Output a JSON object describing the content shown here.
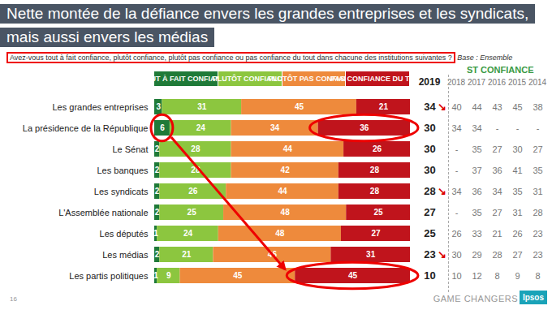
{
  "chart_data": {
    "type": "bar",
    "title": "Nette montée de la défiance envers les grandes entreprises et les syndicats, mais aussi envers les médias",
    "subtitle": "Avez-vous tout à fait confiance, plutôt confiance, plutôt pas confiance ou pas confiance du tout dans chacune des institutions suivantes ?",
    "base": "Base : Ensemble",
    "orientation": "horizontal",
    "stacked": true,
    "data_labels": true,
    "tick_labels": "y",
    "xlim": [
      0,
      100
    ],
    "categories": [
      "Les grandes entreprises",
      "La présidence de la République",
      "Le Sénat",
      "Les banques",
      "Les syndicats",
      "L'Assemblée nationale",
      "Les députés",
      "Les médias",
      "Les partis politiques"
    ],
    "series": [
      {
        "name": "TOUT À FAIT CONFIANCE",
        "color": "#1f7a38",
        "values": [
          3,
          6,
          2,
          2,
          2,
          2,
          1,
          2,
          1
        ]
      },
      {
        "name": "PLUTÔT CONFIANCE",
        "color": "#8cc63f",
        "values": [
          31,
          24,
          28,
          28,
          26,
          25,
          24,
          21,
          9
        ]
      },
      {
        "name": "PLUTÔT PAS CONFIANCE",
        "color": "#ee8a3c",
        "values": [
          45,
          34,
          44,
          42,
          44,
          48,
          48,
          46,
          45
        ]
      },
      {
        "name": "PAS CONFIANCE DU TOUT",
        "color": "#c0141c",
        "values": [
          21,
          36,
          26,
          28,
          28,
          25,
          27,
          31,
          45
        ]
      }
    ],
    "table": {
      "title": "ST CONFIANCE",
      "columns": [
        2019,
        2018,
        2017,
        2016,
        2015,
        2014
      ],
      "rows": [
        [
          34,
          40,
          44,
          43,
          45,
          38
        ],
        [
          30,
          34,
          34,
          "-",
          "-",
          "-"
        ],
        [
          30,
          "-",
          35,
          27,
          30,
          27
        ],
        [
          30,
          "-",
          37,
          36,
          41,
          35
        ],
        [
          28,
          34,
          36,
          34,
          35,
          31
        ],
        [
          27,
          "-",
          35,
          27,
          31,
          28
        ],
        [
          25,
          26,
          33,
          21,
          26,
          23
        ],
        [
          23,
          30,
          29,
          28,
          27,
          23
        ],
        [
          10,
          10,
          12,
          8,
          9,
          8
        ]
      ],
      "trend": [
        "↘",
        null,
        null,
        null,
        "↘",
        null,
        null,
        "↘",
        null
      ]
    },
    "page": 16,
    "source": "GAME CHANGERS",
    "logo": "Ipsos"
  }
}
